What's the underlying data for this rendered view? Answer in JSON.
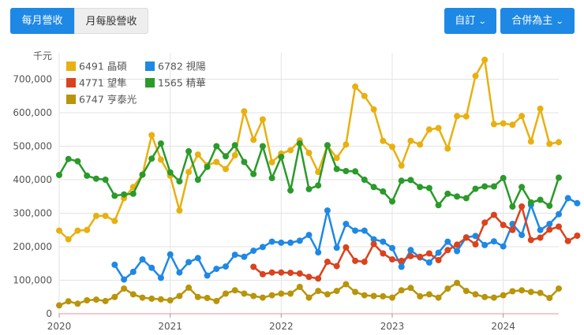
{
  "toolbar": {
    "tab_monthly_revenue": "每月營收",
    "tab_eps_revenue": "月每股營收",
    "dropdown_custom": "自訂",
    "dropdown_consolidated": "合併為主"
  },
  "chart_data": {
    "type": "line",
    "ylabel": "千元",
    "ylim": [
      0,
      760000
    ],
    "yticks": [
      0,
      100000,
      200000,
      300000,
      400000,
      500000,
      600000,
      700000
    ],
    "ytick_labels": [
      "0",
      "100,000",
      "200,000",
      "300,000",
      "400,000",
      "500,000",
      "600,000",
      "700,000"
    ],
    "xlim": [
      "2020-01",
      "2024-07"
    ],
    "xtick_labels": [
      "2020",
      "2021",
      "2022",
      "2023",
      "2024"
    ],
    "legend_position": "top-left",
    "grid": true,
    "series": [
      {
        "name": "6491 晶碩",
        "color": "#e8b010",
        "start": "2020-01",
        "values": [
          248000,
          222000,
          248000,
          250000,
          292000,
          292000,
          277000,
          345000,
          378000,
          415000,
          533000,
          460000,
          412000,
          308000,
          423000,
          475000,
          443000,
          453000,
          432000,
          473000,
          604000,
          519000,
          580000,
          452000,
          478000,
          488000,
          517000,
          480000,
          423000,
          502000,
          465000,
          505000,
          678000,
          650000,
          610000,
          516000,
          498000,
          442000,
          516000,
          505000,
          550000,
          554000,
          493000,
          590000,
          589000,
          710000,
          758000,
          566000,
          568000,
          564000,
          590000,
          514000,
          612000,
          507000,
          512000
        ]
      },
      {
        "name": "6782 視陽",
        "color": "#1e88e5",
        "start": "2020-07",
        "values": [
          146000,
          102000,
          125000,
          162000,
          137000,
          107000,
          177000,
          123000,
          154000,
          166000,
          114000,
          134000,
          141000,
          176000,
          170000,
          188000,
          199000,
          215000,
          212000,
          212000,
          218000,
          235000,
          183000,
          308000,
          197000,
          268000,
          248000,
          248000,
          222000,
          215000,
          196000,
          140000,
          190000,
          168000,
          153000,
          182000,
          215000,
          187000,
          228000,
          232000,
          205000,
          216000,
          201000,
          268000,
          235000,
          325000,
          250000,
          268000,
          297000,
          345000,
          330000
        ]
      },
      {
        "name": "4771 望隼",
        "color": "#d9431e",
        "start": "2021-10",
        "values": [
          140000,
          118000,
          123000,
          123000,
          122000,
          120000,
          110000,
          105000,
          155000,
          142000,
          198000,
          158000,
          155000,
          208000,
          180000,
          162000,
          158000,
          172000,
          170000,
          180000,
          160000,
          190000,
          206000,
          227000,
          207000,
          272000,
          295000,
          265000,
          250000,
          320000,
          220000,
          227000,
          251000,
          260000,
          217000,
          233000
        ]
      },
      {
        "name": "1565 精華",
        "color": "#2a9a2a",
        "start": "2020-01",
        "values": [
          414000,
          462000,
          455000,
          412000,
          403000,
          400000,
          352000,
          356000,
          358000,
          415000,
          463000,
          508000,
          422000,
          395000,
          485000,
          400000,
          438000,
          500000,
          470000,
          503000,
          453000,
          417000,
          500000,
          405000,
          468000,
          368000,
          508000,
          372000,
          383000,
          503000,
          432000,
          426000,
          425000,
          400000,
          378000,
          365000,
          335000,
          397000,
          399000,
          378000,
          375000,
          324000,
          358000,
          350000,
          345000,
          373000,
          380000,
          380000,
          405000,
          320000,
          378000,
          332000,
          340000,
          322000,
          406000
        ]
      },
      {
        "name": "6747 亨泰光",
        "color": "#b8950a",
        "start": "2020-01",
        "values": [
          25000,
          37000,
          30000,
          40000,
          42000,
          38000,
          50000,
          75000,
          58000,
          48000,
          45000,
          43000,
          40000,
          53000,
          78000,
          50000,
          47000,
          38000,
          60000,
          70000,
          60000,
          53000,
          48000,
          55000,
          60000,
          60000,
          80000,
          48000,
          68000,
          58000,
          68000,
          88000,
          65000,
          55000,
          53000,
          52000,
          48000,
          70000,
          77000,
          52000,
          58000,
          48000,
          75000,
          92000,
          68000,
          58000,
          50000,
          48000,
          55000,
          67000,
          70000,
          65000,
          62000,
          47000,
          75000
        ]
      }
    ]
  }
}
